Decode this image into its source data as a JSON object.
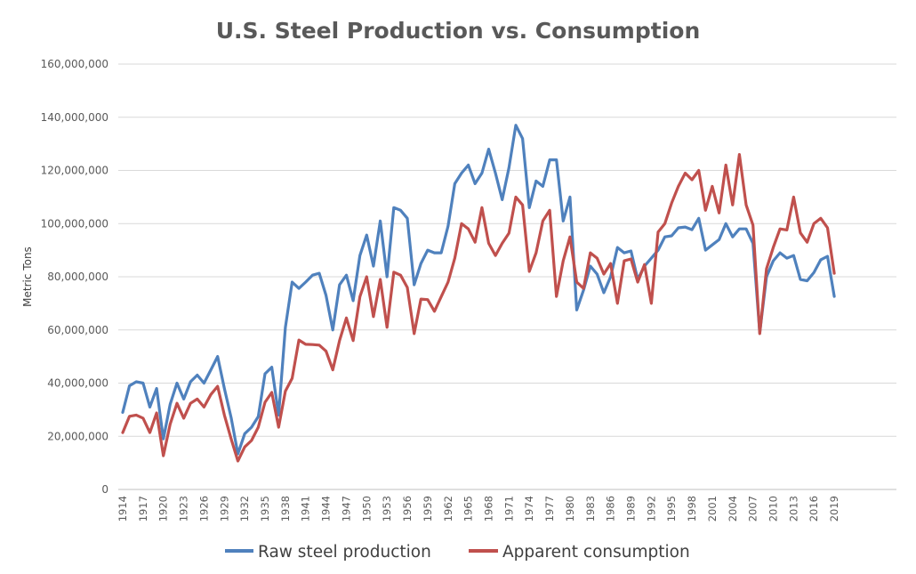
{
  "chart_data": {
    "type": "line",
    "title": "U.S. Steel Production vs. Consumption",
    "xlabel": "",
    "ylabel": "Metric Tons",
    "ylim": [
      0,
      160000000
    ],
    "yticks": [
      0,
      20000000,
      40000000,
      60000000,
      80000000,
      100000000,
      120000000,
      140000000,
      160000000
    ],
    "ytick_labels": [
      "0",
      "20,000,000",
      "40,000,000",
      "60,000,000",
      "80,000,000",
      "100,000,000",
      "120,000,000",
      "140,000,000",
      "160,000,000"
    ],
    "xtick_labels": [
      "1914",
      "1917",
      "1920",
      "1923",
      "1926",
      "1929",
      "1932",
      "1935",
      "1938",
      "1941",
      "1944",
      "1947",
      "1950",
      "1953",
      "1956",
      "1959",
      "1962",
      "1965",
      "1968",
      "1971",
      "1974",
      "1977",
      "1980",
      "1983",
      "1986",
      "1989",
      "1992",
      "1995",
      "1998",
      "2001",
      "2004",
      "2007",
      "2010",
      "2013",
      "2016",
      "2019"
    ],
    "grid": true,
    "legend_position": "bottom",
    "x": [
      1914,
      1915,
      1916,
      1917,
      1918,
      1919,
      1920,
      1921,
      1922,
      1923,
      1924,
      1925,
      1926,
      1927,
      1928,
      1929,
      1930,
      1931,
      1932,
      1933,
      1934,
      1935,
      1936,
      1937,
      1938,
      1939,
      1940,
      1941,
      1942,
      1943,
      1944,
      1945,
      1946,
      1947,
      1948,
      1949,
      1950,
      1951,
      1952,
      1953,
      1954,
      1955,
      1956,
      1957,
      1958,
      1959,
      1960,
      1961,
      1962,
      1963,
      1964,
      1965,
      1966,
      1967,
      1968,
      1969,
      1970,
      1971,
      1972,
      1973,
      1974,
      1975,
      1976,
      1977,
      1978,
      1979,
      1980,
      1981,
      1982,
      1983,
      1984,
      1985,
      1986,
      1987,
      1988,
      1989,
      1990,
      1991,
      1992,
      1993,
      1994,
      1995,
      1996,
      1997,
      1998,
      1999,
      2000,
      2001,
      2002,
      2003,
      2004,
      2005,
      2006,
      2007,
      2008,
      2009,
      2010,
      2011,
      2012,
      2013,
      2014,
      2015,
      2016,
      2017,
      2018,
      2019
    ],
    "series": [
      {
        "name": "Raw steel production",
        "color": "#4f81bd",
        "values": [
          29000000,
          39000000,
          40500000,
          40000000,
          31000000,
          38000000,
          19000000,
          32000000,
          40000000,
          34000000,
          40500000,
          43000000,
          40000000,
          45000000,
          50000000,
          38000000,
          27000000,
          13400000,
          21000000,
          23400000,
          27400000,
          43500000,
          46000000,
          28000000,
          61000000,
          78000000,
          75600000,
          78000000,
          80600000,
          81300000,
          73000000,
          60000000,
          77000000,
          80600000,
          71000000,
          88000000,
          95700000,
          84000000,
          101000000,
          80000000,
          106000000,
          105000000,
          102000000,
          77000000,
          85000000,
          90000000,
          89000000,
          89000000,
          99000000,
          115000000,
          119000000,
          122000000,
          115000000,
          119000000,
          128000000,
          119000000,
          109000000,
          121000000,
          137000000,
          132000000,
          106000000,
          116000000,
          114000000,
          124000000,
          124000000,
          101000000,
          110000000,
          67500000,
          75000000,
          84000000,
          81000000,
          74000000,
          80000000,
          91000000,
          89000000,
          89700000,
          79000000,
          84000000,
          87000000,
          90000000,
          95000000,
          95400000,
          98400000,
          98700000,
          97700000,
          102000000,
          90000000,
          92000000,
          94000000,
          100000000,
          95000000,
          98000000,
          98000000,
          92600000,
          59000000,
          80000000,
          86000000,
          89000000,
          87000000,
          88000000,
          79000000,
          78500000,
          81600000,
          86400000,
          87700000,
          72600000
        ]
      },
      {
        "name": "Apparent consumption",
        "color": "#c0504d",
        "values": [
          21400000,
          27500000,
          28000000,
          26800000,
          21400000,
          28800000,
          12700000,
          24500000,
          32400000,
          26800000,
          32400000,
          34000000,
          31000000,
          35700000,
          38800000,
          28000000,
          19000000,
          10700000,
          16000000,
          18400000,
          23400000,
          32800000,
          36500000,
          23400000,
          37000000,
          41800000,
          56200000,
          54600000,
          54500000,
          54300000,
          52000000,
          45000000,
          56000000,
          64500000,
          56000000,
          72500000,
          80000000,
          65000000,
          79000000,
          61000000,
          81700000,
          80600000,
          76000000,
          58600000,
          71600000,
          71400000,
          67000000,
          72500000,
          78000000,
          87000000,
          100000000,
          98000000,
          93000000,
          106000000,
          92600000,
          88000000,
          92600000,
          96400000,
          110000000,
          107000000,
          82000000,
          89000000,
          101000000,
          105000000,
          72600000,
          86000000,
          95000000,
          78000000,
          75600000,
          89000000,
          87000000,
          81000000,
          85000000,
          70000000,
          86000000,
          86700000,
          78000000,
          84600000,
          70000000,
          96800000,
          100000000,
          107700000,
          114000000,
          119000000,
          116500000,
          120000000,
          105000000,
          114000000,
          104000000,
          122000000,
          107000000,
          126000000,
          107000000,
          99400000,
          58600000,
          83000000,
          91000000,
          98000000,
          97600000,
          110000000,
          96500000,
          93000000,
          100000000,
          102000000,
          98400000,
          81300000
        ]
      }
    ]
  },
  "colors": {
    "gridline": "#d9d9d9",
    "text": "#595959"
  }
}
